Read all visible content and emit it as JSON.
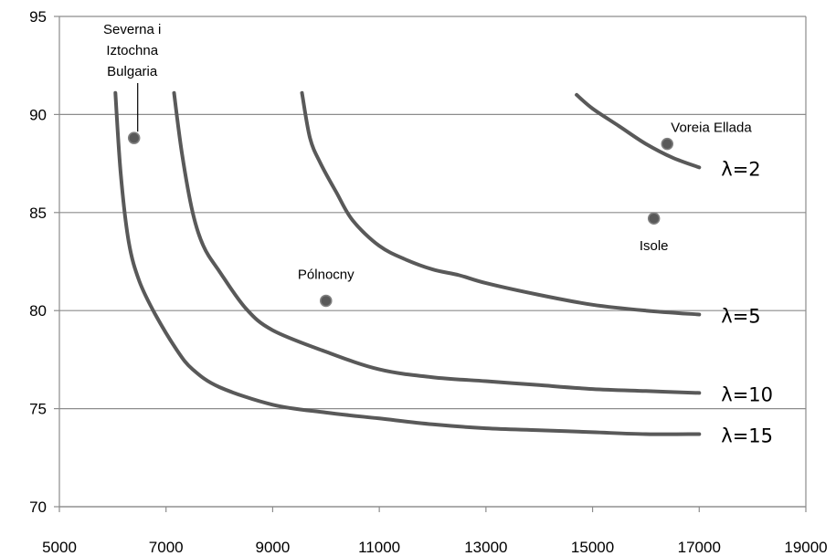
{
  "chart_data": {
    "type": "line",
    "title": "",
    "xlabel": "",
    "ylabel": "",
    "xlim": [
      5000,
      19000
    ],
    "ylim": [
      70,
      95
    ],
    "xticks": [
      "5000",
      "7000",
      "9000",
      "11000",
      "13000",
      "15000",
      "17000",
      "19000"
    ],
    "yticks": [
      "70",
      "75",
      "80",
      "85",
      "90",
      "95"
    ],
    "grid": "horizontal",
    "series": [
      {
        "name": "λ=2",
        "x": [
          14700,
          15000,
          15500,
          16000,
          16500,
          17000
        ],
        "y": [
          91.0,
          90.3,
          89.4,
          88.5,
          87.8,
          87.3
        ]
      },
      {
        "name": "λ=5",
        "x": [
          9550,
          9700,
          9900,
          10200,
          10500,
          11000,
          11500,
          12000,
          12500,
          13000,
          14000,
          15000,
          16000,
          17000
        ],
        "y": [
          91.1,
          88.8,
          87.5,
          86.0,
          84.6,
          83.3,
          82.6,
          82.1,
          81.8,
          81.4,
          80.8,
          80.3,
          80.0,
          79.8
        ]
      },
      {
        "name": "λ=10",
        "x": [
          7150,
          7300,
          7500,
          7700,
          8000,
          8500,
          9000,
          10000,
          11000,
          12000,
          13000,
          14000,
          15000,
          16000,
          17000
        ],
        "y": [
          91.1,
          88.0,
          85.0,
          83.3,
          82.0,
          80.1,
          79.0,
          77.9,
          77.0,
          76.6,
          76.4,
          76.2,
          76.0,
          75.9,
          75.8
        ]
      },
      {
        "name": "λ=15",
        "x": [
          6050,
          6150,
          6300,
          6500,
          6800,
          7200,
          7500,
          8000,
          9000,
          10000,
          11000,
          12000,
          13000,
          14000,
          15000,
          16000,
          17000
        ],
        "y": [
          91.1,
          87.0,
          83.5,
          81.5,
          79.8,
          78.0,
          77.0,
          76.1,
          75.2,
          74.8,
          74.5,
          74.2,
          74.0,
          73.9,
          73.8,
          73.7,
          73.7
        ]
      }
    ],
    "points": [
      {
        "label": "Severna i Iztochna Bulgaria",
        "label_lines": [
          "Severna i",
          "Iztochna",
          "Bulgaria"
        ],
        "x": 6400,
        "y": 88.8
      },
      {
        "label": "Voreia Ellada",
        "x": 16400,
        "y": 88.5
      },
      {
        "label": "Isole",
        "x": 16150,
        "y": 84.7
      },
      {
        "label": "Pólnocny",
        "x": 10000,
        "y": 80.5
      }
    ]
  }
}
